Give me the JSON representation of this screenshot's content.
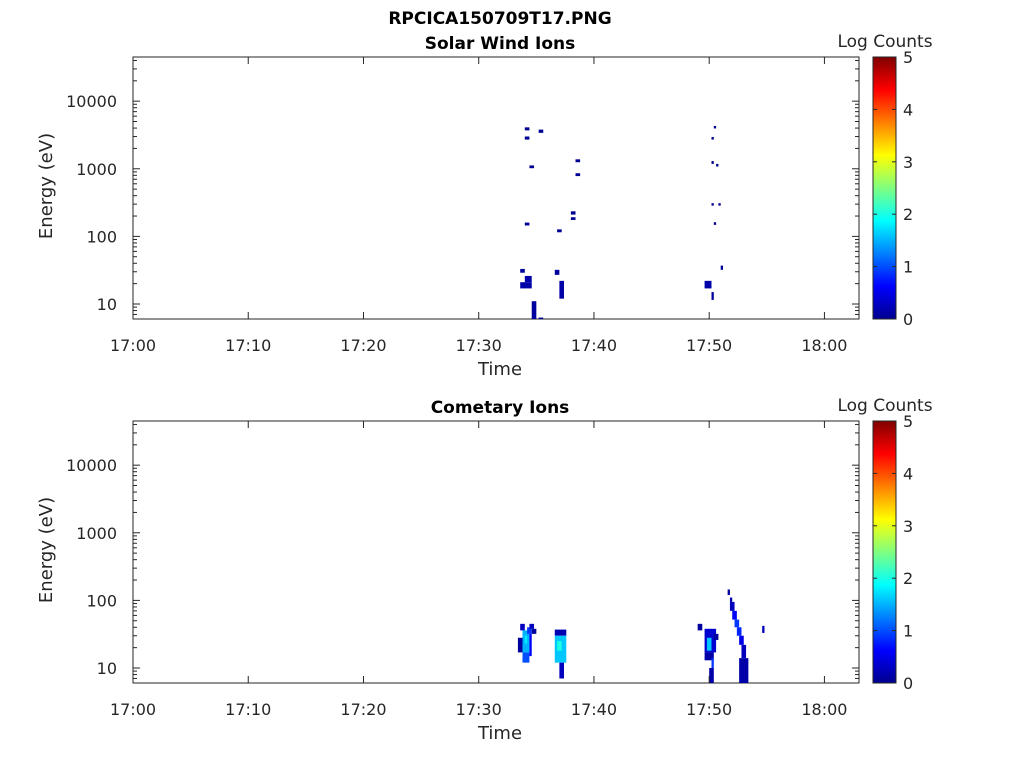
{
  "figure_title": "RPCICA150709T17.PNG",
  "chart_data": [
    {
      "type": "heatmap",
      "title": "Solar Wind Ions",
      "xlabel": "Time",
      "ylabel": "Energy (eV)",
      "x_scale": "time",
      "y_scale": "log",
      "x_ticks": [
        "17:00",
        "17:10",
        "17:20",
        "17:30",
        "17:40",
        "17:50",
        "18:00"
      ],
      "y_ticks": [
        "10",
        "100",
        "1000",
        "10000"
      ],
      "xlim": [
        "17:00",
        "18:03"
      ],
      "ylim": [
        6,
        45000
      ],
      "colorbar": {
        "label": "Log Counts",
        "min": 0,
        "max": 5,
        "ticks": [
          "0",
          "1",
          "2",
          "3",
          "4",
          "5"
        ],
        "colormap": "jet"
      },
      "cells": [
        {
          "t0": "17:33:36",
          "t1": "17:34:00",
          "e0": 29,
          "e1": 33,
          "v": 0.15
        },
        {
          "t0": "17:33:36",
          "t1": "17:34:36",
          "e0": 17,
          "e1": 21,
          "v": 0.2
        },
        {
          "t0": "17:34:00",
          "t1": "17:34:36",
          "e0": 21,
          "e1": 26,
          "v": 0.2
        },
        {
          "t0": "17:34:00",
          "t1": "17:34:24",
          "e0": 3700,
          "e1": 4100,
          "v": 0.1
        },
        {
          "t0": "17:34:00",
          "t1": "17:34:24",
          "e0": 2700,
          "e1": 3000,
          "v": 0.1
        },
        {
          "t0": "17:34:00",
          "t1": "17:34:24",
          "e0": 145,
          "e1": 160,
          "v": 0.1
        },
        {
          "t0": "17:34:24",
          "t1": "17:34:48",
          "e0": 1020,
          "e1": 1120,
          "v": 0.1
        },
        {
          "t0": "17:35:12",
          "t1": "17:35:36",
          "e0": 3400,
          "e1": 3800,
          "v": 0.1
        },
        {
          "t0": "17:34:36",
          "t1": "17:35:00",
          "e0": 6,
          "e1": 11,
          "v": 0.15
        },
        {
          "t0": "17:35:12",
          "t1": "17:35:36",
          "e0": 6,
          "e1": 6.3,
          "v": 0.1
        },
        {
          "t0": "17:36:36",
          "t1": "17:37:00",
          "e0": 27,
          "e1": 32,
          "v": 0.15
        },
        {
          "t0": "17:37:00",
          "t1": "17:37:24",
          "e0": 12,
          "e1": 22,
          "v": 0.2
        },
        {
          "t0": "17:36:48",
          "t1": "17:37:12",
          "e0": 115,
          "e1": 127,
          "v": 0.1
        },
        {
          "t0": "17:38:00",
          "t1": "17:38:24",
          "e0": 210,
          "e1": 235,
          "v": 0.1
        },
        {
          "t0": "17:38:00",
          "t1": "17:38:24",
          "e0": 175,
          "e1": 192,
          "v": 0.1
        },
        {
          "t0": "17:38:24",
          "t1": "17:38:48",
          "e0": 1250,
          "e1": 1380,
          "v": 0.1
        },
        {
          "t0": "17:38:24",
          "t1": "17:38:48",
          "e0": 780,
          "e1": 860,
          "v": 0.1
        },
        {
          "t0": "17:49:36",
          "t1": "17:50:12",
          "e0": 17,
          "e1": 22,
          "v": 0.2
        },
        {
          "t0": "17:50:12",
          "t1": "17:50:24",
          "e0": 11.5,
          "e1": 15,
          "v": 0.15
        },
        {
          "t0": "17:50:24",
          "t1": "17:50:36",
          "e0": 3950,
          "e1": 4300,
          "v": 0.1
        },
        {
          "t0": "17:50:12",
          "t1": "17:50:24",
          "e0": 2700,
          "e1": 2950,
          "v": 0.1
        },
        {
          "t0": "17:50:12",
          "t1": "17:50:24",
          "e0": 1180,
          "e1": 1300,
          "v": 0.1
        },
        {
          "t0": "17:50:36",
          "t1": "17:50:48",
          "e0": 1080,
          "e1": 1180,
          "v": 0.1
        },
        {
          "t0": "17:50:12",
          "t1": "17:50:24",
          "e0": 285,
          "e1": 310,
          "v": 0.1
        },
        {
          "t0": "17:50:48",
          "t1": "17:51:00",
          "e0": 285,
          "e1": 310,
          "v": 0.1
        },
        {
          "t0": "17:50:24",
          "t1": "17:50:36",
          "e0": 148,
          "e1": 162,
          "v": 0.1
        },
        {
          "t0": "17:51:00",
          "t1": "17:51:12",
          "e0": 32,
          "e1": 37,
          "v": 0.15
        }
      ]
    },
    {
      "type": "heatmap",
      "title": "Cometary Ions",
      "xlabel": "Time",
      "ylabel": "Energy (eV)",
      "x_scale": "time",
      "y_scale": "log",
      "x_ticks": [
        "17:00",
        "17:10",
        "17:20",
        "17:30",
        "17:40",
        "17:50",
        "18:00"
      ],
      "y_ticks": [
        "10",
        "100",
        "1000",
        "10000"
      ],
      "xlim": [
        "17:00",
        "18:03"
      ],
      "ylim": [
        6,
        45000
      ],
      "colorbar": {
        "label": "Log Counts",
        "min": 0,
        "max": 5,
        "ticks": [
          "0",
          "1",
          "2",
          "3",
          "4",
          "5"
        ],
        "colormap": "jet"
      },
      "cells": [
        {
          "t0": "17:33:24",
          "t1": "17:33:48",
          "e0": 17,
          "e1": 28,
          "v": 0.15
        },
        {
          "t0": "17:33:36",
          "t1": "17:34:00",
          "e0": 36,
          "e1": 45,
          "v": 0.3
        },
        {
          "t0": "17:33:48",
          "t1": "17:34:24",
          "e0": 12,
          "e1": 17,
          "v": 1.0
        },
        {
          "t0": "17:33:48",
          "t1": "17:34:24",
          "e0": 17,
          "e1": 36,
          "v": 1.5
        },
        {
          "t0": "17:34:00",
          "t1": "17:34:12",
          "e0": 23,
          "e1": 30,
          "v": 1.8
        },
        {
          "t0": "17:34:12",
          "t1": "17:34:36",
          "e0": 32,
          "e1": 40,
          "v": 0.9
        },
        {
          "t0": "17:34:24",
          "t1": "17:34:36",
          "e0": 15,
          "e1": 32,
          "v": 0.6
        },
        {
          "t0": "17:34:24",
          "t1": "17:34:48",
          "e0": 38,
          "e1": 45,
          "v": 0.3
        },
        {
          "t0": "17:34:36",
          "t1": "17:35:00",
          "e0": 32,
          "e1": 38,
          "v": 0.15
        },
        {
          "t0": "17:36:36",
          "t1": "17:37:36",
          "e0": 30,
          "e1": 37,
          "v": 0.25
        },
        {
          "t0": "17:36:36",
          "t1": "17:37:36",
          "e0": 12,
          "e1": 30,
          "v": 1.6
        },
        {
          "t0": "17:36:48",
          "t1": "17:37:12",
          "e0": 18,
          "e1": 25,
          "v": 2.0
        },
        {
          "t0": "17:37:00",
          "t1": "17:37:24",
          "e0": 7,
          "e1": 12,
          "v": 0.3
        },
        {
          "t0": "17:49:00",
          "t1": "17:49:24",
          "e0": 36,
          "e1": 45,
          "v": 0.15
        },
        {
          "t0": "17:49:36",
          "t1": "17:50:36",
          "e0": 17,
          "e1": 38,
          "v": 0.4
        },
        {
          "t0": "17:49:36",
          "t1": "17:50:24",
          "e0": 13,
          "e1": 17,
          "v": 0.2
        },
        {
          "t0": "17:49:48",
          "t1": "17:50:12",
          "e0": 18,
          "e1": 28,
          "v": 1.6
        },
        {
          "t0": "17:50:12",
          "t1": "17:50:24",
          "e0": 10,
          "e1": 14,
          "v": 0.9
        },
        {
          "t0": "17:50:00",
          "t1": "17:50:24",
          "e0": 6,
          "e1": 10,
          "v": 0.2
        },
        {
          "t0": "17:50:24",
          "t1": "17:50:48",
          "e0": 26,
          "e1": 32,
          "v": 0.15
        },
        {
          "t0": "17:51:36",
          "t1": "17:51:48",
          "e0": 120,
          "e1": 145,
          "v": 0.15
        },
        {
          "t0": "17:51:48",
          "t1": "17:52:00",
          "e0": 95,
          "e1": 110,
          "v": 0.2
        },
        {
          "t0": "17:51:48",
          "t1": "17:52:12",
          "e0": 70,
          "e1": 95,
          "v": 0.3
        },
        {
          "t0": "17:52:00",
          "t1": "17:52:24",
          "e0": 52,
          "e1": 70,
          "v": 0.6
        },
        {
          "t0": "17:52:12",
          "t1": "17:52:36",
          "e0": 40,
          "e1": 52,
          "v": 0.9
        },
        {
          "t0": "17:52:24",
          "t1": "17:52:48",
          "e0": 30,
          "e1": 40,
          "v": 0.8
        },
        {
          "t0": "17:52:36",
          "t1": "17:53:00",
          "e0": 22,
          "e1": 30,
          "v": 0.5
        },
        {
          "t0": "17:52:48",
          "t1": "17:53:12",
          "e0": 14,
          "e1": 22,
          "v": 0.3
        },
        {
          "t0": "17:52:36",
          "t1": "17:53:24",
          "e0": 6,
          "e1": 14,
          "v": 0.2
        },
        {
          "t0": "17:54:36",
          "t1": "17:54:48",
          "e0": 33,
          "e1": 42,
          "v": 0.3
        }
      ]
    }
  ]
}
